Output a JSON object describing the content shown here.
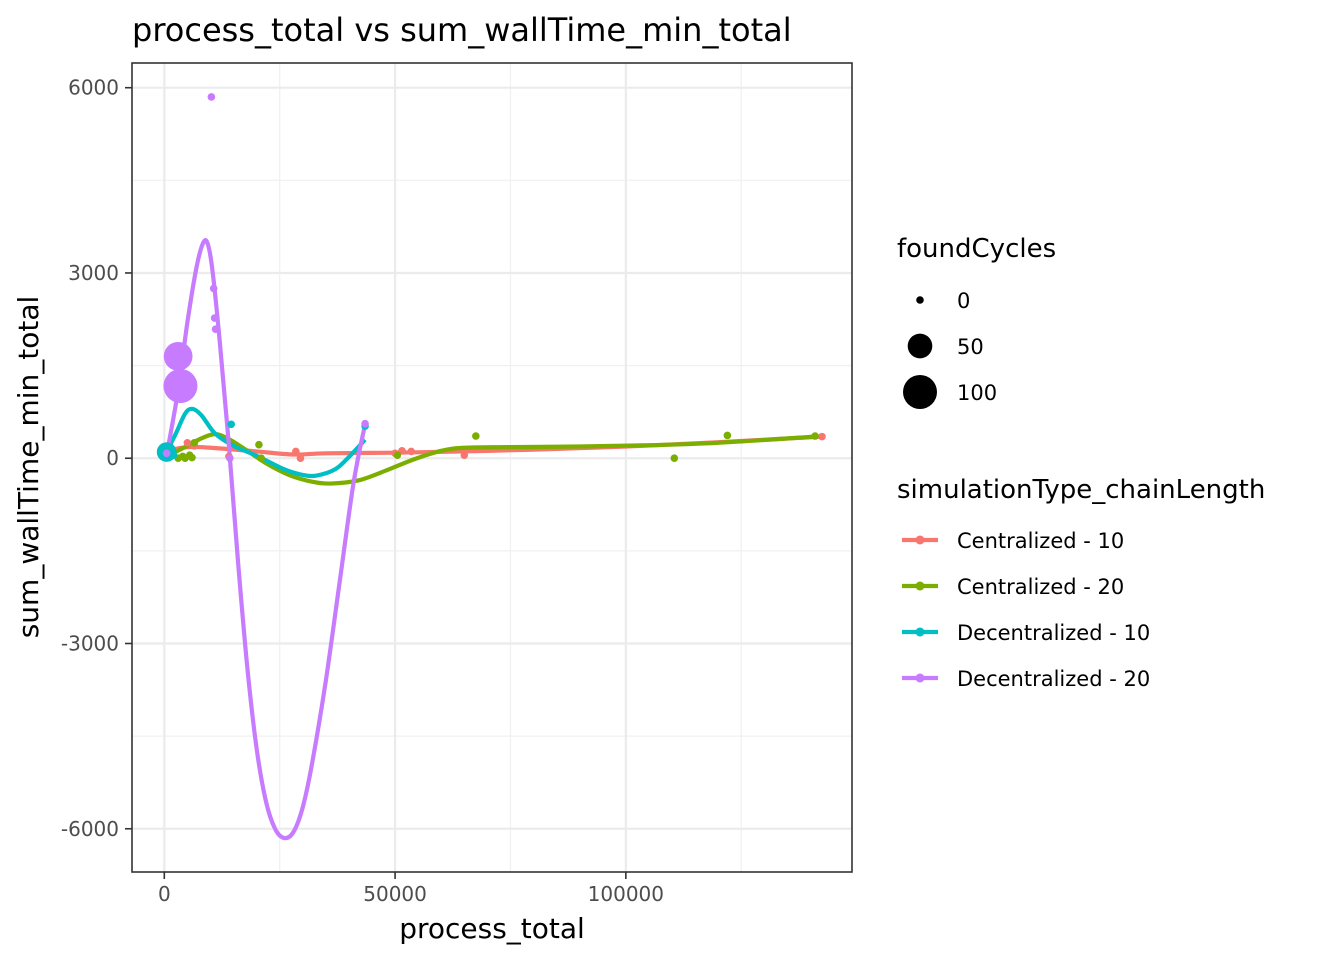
{
  "chart_data": {
    "type": "scatter",
    "title": "process_total  vs  sum_wallTime_min_total",
    "xlabel": "process_total",
    "ylabel": "sum_wallTime_min_total",
    "xlim": [
      -7000,
      149000
    ],
    "ylim": [
      -6700,
      6400
    ],
    "x_ticks": [
      0,
      50000,
      100000
    ],
    "y_ticks": [
      -6000,
      -3000,
      0,
      3000,
      6000
    ],
    "x_tick_labels": [
      "0",
      "50000",
      "100000"
    ],
    "y_tick_labels": [
      "-6000",
      "-3000",
      "0",
      "3000",
      "6000"
    ],
    "grid": true,
    "legend_position": "right",
    "size_legend": {
      "title": "foundCycles",
      "entries": [
        {
          "label": "0",
          "value": 0
        },
        {
          "label": "50",
          "value": 50
        },
        {
          "label": "100",
          "value": 100
        }
      ]
    },
    "color_legend": {
      "title": "simulationType_chainLength"
    },
    "series": [
      {
        "name": "Centralized - 10",
        "color": "#F8766D",
        "points": [
          {
            "x": 500,
            "y": 50,
            "size": 0
          },
          {
            "x": 5000,
            "y": 250,
            "size": 0
          },
          {
            "x": 6500,
            "y": 200,
            "size": 0
          },
          {
            "x": 14000,
            "y": 30,
            "size": 0
          },
          {
            "x": 28500,
            "y": 110,
            "size": 0
          },
          {
            "x": 29500,
            "y": 0,
            "size": 0
          },
          {
            "x": 50000,
            "y": 80,
            "size": 0
          },
          {
            "x": 51500,
            "y": 120,
            "size": 0
          },
          {
            "x": 53500,
            "y": 110,
            "size": 0
          },
          {
            "x": 65000,
            "y": 50,
            "size": 0
          },
          {
            "x": 142500,
            "y": 350,
            "size": 0
          }
        ],
        "smooth": [
          {
            "x": 500,
            "y": 120
          },
          {
            "x": 5000,
            "y": 180
          },
          {
            "x": 10000,
            "y": 170
          },
          {
            "x": 20000,
            "y": 110
          },
          {
            "x": 28000,
            "y": 60
          },
          {
            "x": 35000,
            "y": 80
          },
          {
            "x": 50000,
            "y": 90
          },
          {
            "x": 65000,
            "y": 110
          },
          {
            "x": 80000,
            "y": 140
          },
          {
            "x": 100000,
            "y": 190
          },
          {
            "x": 120000,
            "y": 260
          },
          {
            "x": 142500,
            "y": 350
          }
        ]
      },
      {
        "name": "Centralized - 20",
        "color": "#7CAE00",
        "points": [
          {
            "x": 1000,
            "y": 20,
            "size": 0
          },
          {
            "x": 3000,
            "y": 0,
            "size": 0
          },
          {
            "x": 4000,
            "y": 30,
            "size": 0
          },
          {
            "x": 4500,
            "y": 0,
            "size": 0
          },
          {
            "x": 5500,
            "y": 50,
            "size": 0
          },
          {
            "x": 6000,
            "y": 10,
            "size": 0
          },
          {
            "x": 6500,
            "y": 250,
            "size": 0
          },
          {
            "x": 20500,
            "y": 220,
            "size": 0
          },
          {
            "x": 21000,
            "y": 0,
            "size": 0
          },
          {
            "x": 50500,
            "y": 50,
            "size": 0
          },
          {
            "x": 67500,
            "y": 360,
            "size": 0
          },
          {
            "x": 110500,
            "y": 0,
            "size": 0
          },
          {
            "x": 122000,
            "y": 370,
            "size": 0
          },
          {
            "x": 141000,
            "y": 360,
            "size": 0
          }
        ],
        "smooth": [
          {
            "x": 1000,
            "y": 50
          },
          {
            "x": 5000,
            "y": 200
          },
          {
            "x": 8000,
            "y": 320
          },
          {
            "x": 11000,
            "y": 390
          },
          {
            "x": 14000,
            "y": 310
          },
          {
            "x": 18000,
            "y": 120
          },
          {
            "x": 22000,
            "y": -80
          },
          {
            "x": 27000,
            "y": -270
          },
          {
            "x": 32000,
            "y": -380
          },
          {
            "x": 36000,
            "y": -410
          },
          {
            "x": 42000,
            "y": -360
          },
          {
            "x": 48000,
            "y": -200
          },
          {
            "x": 54000,
            "y": -20
          },
          {
            "x": 60000,
            "y": 120
          },
          {
            "x": 65000,
            "y": 170
          },
          {
            "x": 75000,
            "y": 180
          },
          {
            "x": 90000,
            "y": 190
          },
          {
            "x": 105000,
            "y": 210
          },
          {
            "x": 120000,
            "y": 250
          },
          {
            "x": 141000,
            "y": 350
          }
        ]
      },
      {
        "name": "Decentralized - 10",
        "color": "#00BFC4",
        "points": [
          {
            "x": 500,
            "y": 100,
            "size": 30
          },
          {
            "x": 2000,
            "y": 50,
            "size": 0
          },
          {
            "x": 14500,
            "y": 550,
            "size": 0
          },
          {
            "x": 43500,
            "y": 520,
            "size": 0
          }
        ],
        "smooth": [
          {
            "x": 500,
            "y": 100
          },
          {
            "x": 2500,
            "y": 400
          },
          {
            "x": 4500,
            "y": 720
          },
          {
            "x": 6000,
            "y": 800
          },
          {
            "x": 8000,
            "y": 700
          },
          {
            "x": 11000,
            "y": 400
          },
          {
            "x": 15000,
            "y": 200
          },
          {
            "x": 20000,
            "y": 40
          },
          {
            "x": 26000,
            "y": -180
          },
          {
            "x": 30000,
            "y": -270
          },
          {
            "x": 33000,
            "y": -280
          },
          {
            "x": 37000,
            "y": -180
          },
          {
            "x": 40000,
            "y": 20
          },
          {
            "x": 43500,
            "y": 300
          }
        ]
      },
      {
        "name": "Decentralized - 20",
        "color": "#C77CFF",
        "points": [
          {
            "x": 500,
            "y": 80,
            "size": 0
          },
          {
            "x": 3000,
            "y": 1650,
            "size": 70
          },
          {
            "x": 3500,
            "y": 1170,
            "size": 100
          },
          {
            "x": 10200,
            "y": 5850,
            "size": 0
          },
          {
            "x": 10700,
            "y": 2750,
            "size": 0
          },
          {
            "x": 10900,
            "y": 2270,
            "size": 0
          },
          {
            "x": 11100,
            "y": 2090,
            "size": 0
          },
          {
            "x": 14200,
            "y": 0,
            "size": 0
          },
          {
            "x": 43500,
            "y": 560,
            "size": 0
          }
        ],
        "smooth": [
          {
            "x": 500,
            "y": 50
          },
          {
            "x": 3000,
            "y": 1100
          },
          {
            "x": 5000,
            "y": 2200
          },
          {
            "x": 7000,
            "y": 3100
          },
          {
            "x": 8500,
            "y": 3500
          },
          {
            "x": 9500,
            "y": 3450
          },
          {
            "x": 10500,
            "y": 3000
          },
          {
            "x": 12000,
            "y": 1900
          },
          {
            "x": 14000,
            "y": 200
          },
          {
            "x": 16000,
            "y": -1700
          },
          {
            "x": 18000,
            "y": -3400
          },
          {
            "x": 20000,
            "y": -4700
          },
          {
            "x": 22000,
            "y": -5550
          },
          {
            "x": 24000,
            "y": -6000
          },
          {
            "x": 26000,
            "y": -6150
          },
          {
            "x": 28000,
            "y": -6050
          },
          {
            "x": 30000,
            "y": -5650
          },
          {
            "x": 32000,
            "y": -4950
          },
          {
            "x": 35000,
            "y": -3600
          },
          {
            "x": 38000,
            "y": -2000
          },
          {
            "x": 41000,
            "y": -400
          },
          {
            "x": 43500,
            "y": 550
          }
        ]
      }
    ]
  }
}
